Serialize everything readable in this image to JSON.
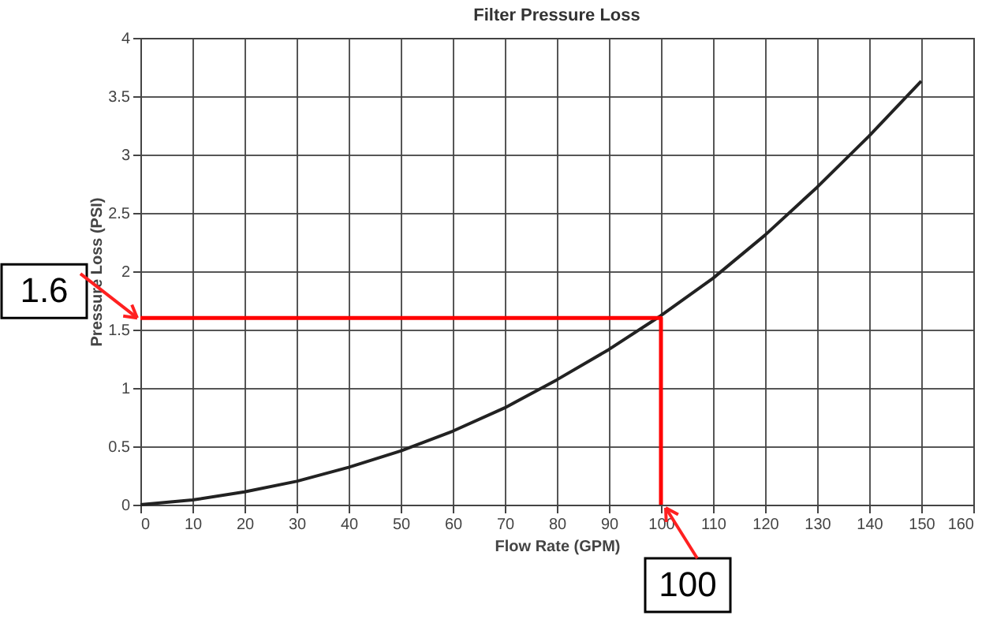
{
  "chart_data": {
    "type": "line",
    "title": "Filter Pressure Loss",
    "xlabel": "Flow Rate (GPM)",
    "ylabel": "Pressure Loss (PSI)",
    "xlim": [
      0,
      160
    ],
    "xticks": [
      0,
      10,
      20,
      30,
      40,
      50,
      60,
      70,
      80,
      90,
      100,
      110,
      120,
      130,
      140,
      150,
      160
    ],
    "ylim": [
      0,
      4
    ],
    "yticks": [
      0,
      0.5,
      1,
      1.5,
      2,
      2.5,
      3,
      3.5,
      4
    ],
    "grid": true,
    "marker": "none",
    "line_style": "solid",
    "series": [
      {
        "color": "#222222",
        "x": [
          0,
          10,
          20,
          30,
          40,
          50,
          60,
          70,
          80,
          90,
          100,
          110,
          120,
          130,
          140,
          150
        ],
        "values": [
          0,
          0.04,
          0.11,
          0.2,
          0.32,
          0.46,
          0.63,
          0.83,
          1.07,
          1.33,
          1.62,
          1.94,
          2.31,
          2.72,
          3.16,
          3.63
        ]
      },
      {
        "color": "#ff0000",
        "x": [
          0,
          100,
          100
        ],
        "values": [
          1.6,
          1.6,
          0
        ]
      }
    ],
    "annotations": [
      {
        "text": "1.6",
        "x": 0,
        "y": 1.6
      },
      {
        "text": "100",
        "x": 100,
        "y": 0
      }
    ]
  }
}
